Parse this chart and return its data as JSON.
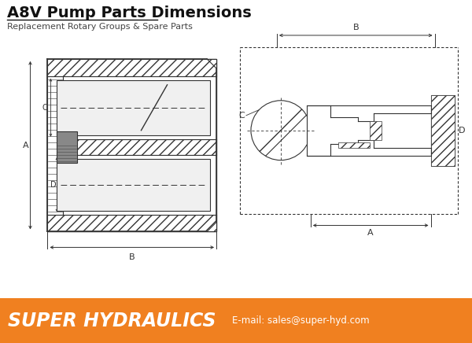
{
  "title": "A8V Pump Parts Dimensions",
  "subtitle": "Replacement Rotary Groups & Spare Parts",
  "title_fontsize": 14,
  "subtitle_fontsize": 8,
  "bg_color": "#ffffff",
  "line_color": "#333333",
  "footer_bg": "#F08020",
  "footer_text": "SUPER HYDRAULICS",
  "footer_email": "E-mail: sales@super-hyd.com",
  "footer_text_color": "#ffffff",
  "label_A": "A",
  "label_B": "B",
  "label_C": "C",
  "label_D": "D"
}
